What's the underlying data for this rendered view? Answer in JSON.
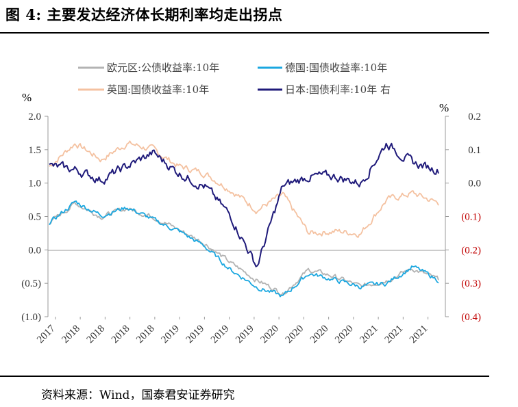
{
  "header": {
    "title": "图 4:  主要发达经济体长期利率均走出拐点"
  },
  "footer": {
    "source": "资料来源：Wind，国泰君安证券研究"
  },
  "chart_data": {
    "type": "line",
    "left_unit": "%",
    "right_unit": "%",
    "y_left": {
      "range": [
        -1.0,
        2.0
      ],
      "ticks": [
        "2.0",
        "1.5",
        "1.0",
        "0.5",
        "0.0",
        "(0.5)",
        "(1.0)"
      ],
      "tick_values": [
        2.0,
        1.5,
        1.0,
        0.5,
        0.0,
        -0.5,
        -1.0
      ]
    },
    "y_right": {
      "range": [
        -0.4,
        0.2
      ],
      "ticks": [
        "0.2",
        "0.1",
        "0.0",
        "(0.1)",
        "(0.2)",
        "(0.3)",
        "(0.4)"
      ],
      "tick_values": [
        0.2,
        0.1,
        0.0,
        -0.1,
        -0.2,
        -0.3,
        -0.4
      ],
      "color": "#c00000"
    },
    "x_tick_labels": [
      "2017",
      "2018",
      "2018",
      "2018",
      "2018",
      "2019",
      "2019",
      "2019",
      "2019",
      "2020",
      "2020",
      "2020",
      "2020",
      "2021",
      "2021",
      "2021"
    ],
    "x": [
      "2017-12",
      "2018-03",
      "2018-06",
      "2018-09",
      "2018-12",
      "2019-03",
      "2019-06",
      "2019-09",
      "2019-12",
      "2020-03",
      "2020-06",
      "2020-09",
      "2020-12",
      "2021-03",
      "2021-06",
      "2021-09"
    ],
    "grid": false,
    "legend_position": "top",
    "series": [
      {
        "name": "欧元区:公债收益率:10年",
        "axis": "left",
        "color": "#b3b3b3",
        "values": [
          0.4,
          0.7,
          0.5,
          0.62,
          0.5,
          0.3,
          0.1,
          -0.2,
          -0.45,
          -0.65,
          -0.3,
          -0.4,
          -0.55,
          -0.45,
          -0.28,
          -0.45
        ]
      },
      {
        "name": "德国:国债收益率:10年",
        "axis": "left",
        "color": "#1aa7e0",
        "values": [
          0.4,
          0.72,
          0.52,
          0.64,
          0.45,
          0.28,
          0.05,
          -0.3,
          -0.55,
          -0.7,
          -0.35,
          -0.45,
          -0.55,
          -0.5,
          -0.25,
          -0.45
        ]
      },
      {
        "name": "英国:国债收益率:10年",
        "axis": "left",
        "color": "#f4c1a0",
        "values": [
          1.25,
          1.6,
          1.35,
          1.6,
          1.5,
          1.25,
          1.15,
          0.9,
          0.6,
          0.82,
          0.25,
          0.28,
          0.25,
          0.75,
          0.85,
          0.7
        ]
      },
      {
        "name": "日本:国债利率:10年 右",
        "axis": "right",
        "color": "#1f1a7a",
        "values": [
          0.05,
          0.04,
          0.01,
          0.05,
          0.09,
          0.03,
          -0.01,
          -0.1,
          -0.25,
          -0.01,
          0.02,
          0.02,
          0.0,
          0.12,
          0.06,
          0.04
        ]
      }
    ]
  }
}
